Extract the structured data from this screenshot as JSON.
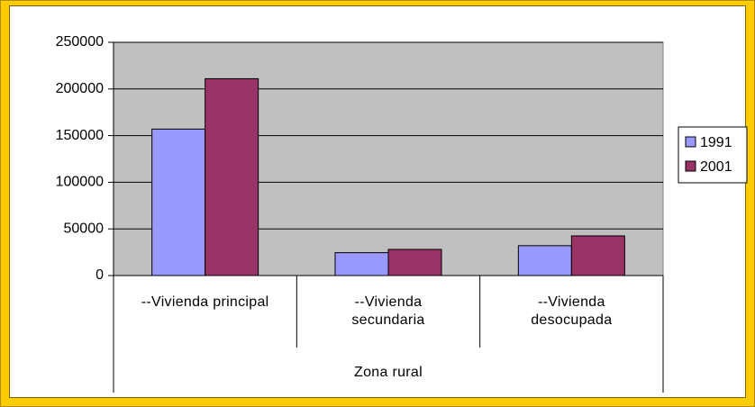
{
  "chart_data": {
    "type": "bar",
    "categories": [
      "--Vivienda principal",
      "--Vivienda\nsecundaria",
      "--Vivienda\ndesocupada"
    ],
    "group_label": "Zona rural",
    "series": [
      {
        "name": "1991",
        "color": "#9999ff",
        "values": [
          157000,
          24500,
          32000
        ]
      },
      {
        "name": "2001",
        "color": "#993366",
        "values": [
          211000,
          28000,
          42500
        ]
      }
    ],
    "ylim": [
      0,
      250000
    ],
    "yticks": [
      0,
      50000,
      100000,
      150000,
      200000,
      250000
    ],
    "grid": true,
    "legend": "right"
  }
}
